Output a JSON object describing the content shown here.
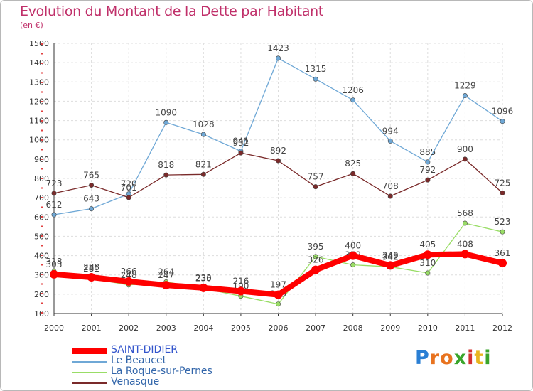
{
  "title": "Evolution du Montant de la Dette par Habitant",
  "unit": "(en €)",
  "brand": {
    "letters": [
      "P",
      "r",
      "o",
      "x",
      "i",
      "t",
      "i"
    ],
    "colors": [
      "#2a7fd4",
      "#e8731f",
      "#e8731f",
      "#3aa52b",
      "#d4302f",
      "#e8b51f",
      "#3aa52b"
    ]
  },
  "chart_data": {
    "type": "line",
    "x": [
      "2000",
      "2001",
      "2002",
      "2003",
      "2004",
      "2005",
      "2006",
      "2007",
      "2008",
      "2009",
      "2010",
      "2011",
      "2012"
    ],
    "ylim": [
      100,
      1500
    ],
    "yticks": [
      100,
      200,
      300,
      400,
      500,
      600,
      700,
      800,
      900,
      1000,
      1100,
      1200,
      1300,
      1400,
      1500
    ],
    "grid": true,
    "legend": "bottom-left",
    "series": [
      {
        "name": "SAINT-DIDIER",
        "color": "#ff0000",
        "values": [
          303,
          288,
          266,
          247,
          233,
          216,
          197,
          326,
          400,
          349,
          405,
          408,
          361
        ]
      },
      {
        "name": "Le Beaucet",
        "color": "#6fa8d6",
        "values": [
          612,
          643,
          720,
          1090,
          1028,
          941,
          1423,
          1315,
          1206,
          994,
          885,
          1229,
          1096
        ]
      },
      {
        "name": "La Roque-sur-Pernes",
        "color": "#99dd66",
        "values": [
          318,
          281,
          248,
          264,
          230,
          190,
          149,
          395,
          352,
          342,
          310,
          568,
          523
        ]
      },
      {
        "name": "Venasque",
        "color": "#7a2a2a",
        "values": [
          723,
          765,
          701,
          818,
          821,
          932,
          892,
          757,
          825,
          708,
          792,
          900,
          725
        ]
      }
    ]
  }
}
